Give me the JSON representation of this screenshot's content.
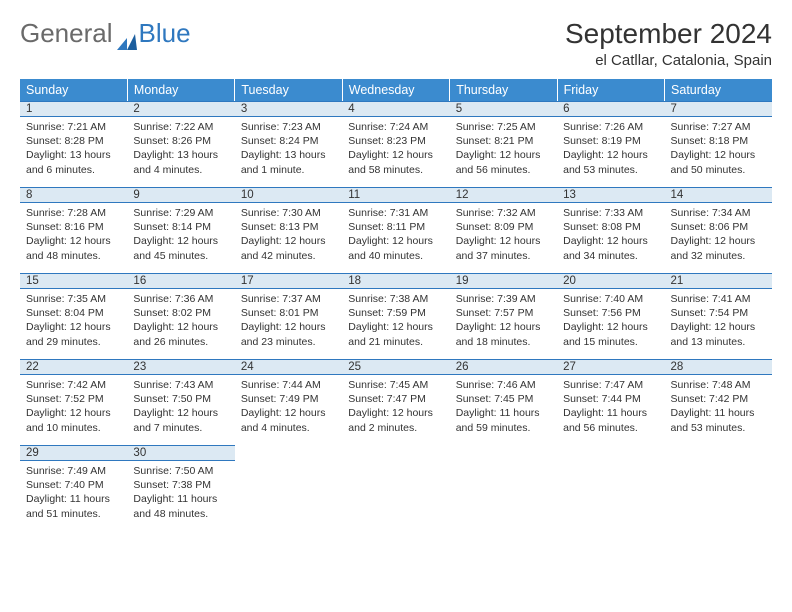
{
  "logo": {
    "text1": "General",
    "text2": "Blue"
  },
  "title": "September 2024",
  "location": "el Catllar, Catalonia, Spain",
  "colors": {
    "header_bg": "#3b8bcf",
    "daynum_bg": "#dce9f3",
    "border": "#2f78bf",
    "logo_blue": "#2f78bf",
    "logo_gray": "#6a6a6a"
  },
  "day_headers": [
    "Sunday",
    "Monday",
    "Tuesday",
    "Wednesday",
    "Thursday",
    "Friday",
    "Saturday"
  ],
  "weeks": [
    [
      {
        "n": "1",
        "sr": "Sunrise: 7:21 AM",
        "ss": "Sunset: 8:28 PM",
        "dl": "Daylight: 13 hours and 6 minutes."
      },
      {
        "n": "2",
        "sr": "Sunrise: 7:22 AM",
        "ss": "Sunset: 8:26 PM",
        "dl": "Daylight: 13 hours and 4 minutes."
      },
      {
        "n": "3",
        "sr": "Sunrise: 7:23 AM",
        "ss": "Sunset: 8:24 PM",
        "dl": "Daylight: 13 hours and 1 minute."
      },
      {
        "n": "4",
        "sr": "Sunrise: 7:24 AM",
        "ss": "Sunset: 8:23 PM",
        "dl": "Daylight: 12 hours and 58 minutes."
      },
      {
        "n": "5",
        "sr": "Sunrise: 7:25 AM",
        "ss": "Sunset: 8:21 PM",
        "dl": "Daylight: 12 hours and 56 minutes."
      },
      {
        "n": "6",
        "sr": "Sunrise: 7:26 AM",
        "ss": "Sunset: 8:19 PM",
        "dl": "Daylight: 12 hours and 53 minutes."
      },
      {
        "n": "7",
        "sr": "Sunrise: 7:27 AM",
        "ss": "Sunset: 8:18 PM",
        "dl": "Daylight: 12 hours and 50 minutes."
      }
    ],
    [
      {
        "n": "8",
        "sr": "Sunrise: 7:28 AM",
        "ss": "Sunset: 8:16 PM",
        "dl": "Daylight: 12 hours and 48 minutes."
      },
      {
        "n": "9",
        "sr": "Sunrise: 7:29 AM",
        "ss": "Sunset: 8:14 PM",
        "dl": "Daylight: 12 hours and 45 minutes."
      },
      {
        "n": "10",
        "sr": "Sunrise: 7:30 AM",
        "ss": "Sunset: 8:13 PM",
        "dl": "Daylight: 12 hours and 42 minutes."
      },
      {
        "n": "11",
        "sr": "Sunrise: 7:31 AM",
        "ss": "Sunset: 8:11 PM",
        "dl": "Daylight: 12 hours and 40 minutes."
      },
      {
        "n": "12",
        "sr": "Sunrise: 7:32 AM",
        "ss": "Sunset: 8:09 PM",
        "dl": "Daylight: 12 hours and 37 minutes."
      },
      {
        "n": "13",
        "sr": "Sunrise: 7:33 AM",
        "ss": "Sunset: 8:08 PM",
        "dl": "Daylight: 12 hours and 34 minutes."
      },
      {
        "n": "14",
        "sr": "Sunrise: 7:34 AM",
        "ss": "Sunset: 8:06 PM",
        "dl": "Daylight: 12 hours and 32 minutes."
      }
    ],
    [
      {
        "n": "15",
        "sr": "Sunrise: 7:35 AM",
        "ss": "Sunset: 8:04 PM",
        "dl": "Daylight: 12 hours and 29 minutes."
      },
      {
        "n": "16",
        "sr": "Sunrise: 7:36 AM",
        "ss": "Sunset: 8:02 PM",
        "dl": "Daylight: 12 hours and 26 minutes."
      },
      {
        "n": "17",
        "sr": "Sunrise: 7:37 AM",
        "ss": "Sunset: 8:01 PM",
        "dl": "Daylight: 12 hours and 23 minutes."
      },
      {
        "n": "18",
        "sr": "Sunrise: 7:38 AM",
        "ss": "Sunset: 7:59 PM",
        "dl": "Daylight: 12 hours and 21 minutes."
      },
      {
        "n": "19",
        "sr": "Sunrise: 7:39 AM",
        "ss": "Sunset: 7:57 PM",
        "dl": "Daylight: 12 hours and 18 minutes."
      },
      {
        "n": "20",
        "sr": "Sunrise: 7:40 AM",
        "ss": "Sunset: 7:56 PM",
        "dl": "Daylight: 12 hours and 15 minutes."
      },
      {
        "n": "21",
        "sr": "Sunrise: 7:41 AM",
        "ss": "Sunset: 7:54 PM",
        "dl": "Daylight: 12 hours and 13 minutes."
      }
    ],
    [
      {
        "n": "22",
        "sr": "Sunrise: 7:42 AM",
        "ss": "Sunset: 7:52 PM",
        "dl": "Daylight: 12 hours and 10 minutes."
      },
      {
        "n": "23",
        "sr": "Sunrise: 7:43 AM",
        "ss": "Sunset: 7:50 PM",
        "dl": "Daylight: 12 hours and 7 minutes."
      },
      {
        "n": "24",
        "sr": "Sunrise: 7:44 AM",
        "ss": "Sunset: 7:49 PM",
        "dl": "Daylight: 12 hours and 4 minutes."
      },
      {
        "n": "25",
        "sr": "Sunrise: 7:45 AM",
        "ss": "Sunset: 7:47 PM",
        "dl": "Daylight: 12 hours and 2 minutes."
      },
      {
        "n": "26",
        "sr": "Sunrise: 7:46 AM",
        "ss": "Sunset: 7:45 PM",
        "dl": "Daylight: 11 hours and 59 minutes."
      },
      {
        "n": "27",
        "sr": "Sunrise: 7:47 AM",
        "ss": "Sunset: 7:44 PM",
        "dl": "Daylight: 11 hours and 56 minutes."
      },
      {
        "n": "28",
        "sr": "Sunrise: 7:48 AM",
        "ss": "Sunset: 7:42 PM",
        "dl": "Daylight: 11 hours and 53 minutes."
      }
    ],
    [
      {
        "n": "29",
        "sr": "Sunrise: 7:49 AM",
        "ss": "Sunset: 7:40 PM",
        "dl": "Daylight: 11 hours and 51 minutes."
      },
      {
        "n": "30",
        "sr": "Sunrise: 7:50 AM",
        "ss": "Sunset: 7:38 PM",
        "dl": "Daylight: 11 hours and 48 minutes."
      },
      null,
      null,
      null,
      null,
      null
    ]
  ]
}
